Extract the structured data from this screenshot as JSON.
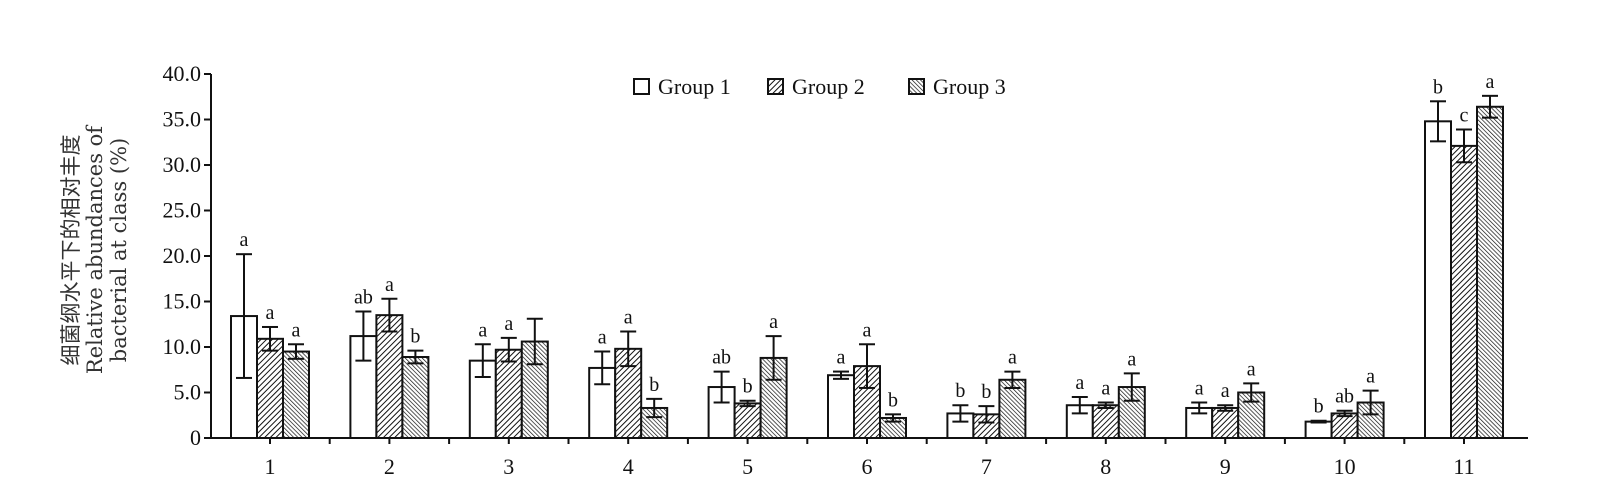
{
  "chart_data": {
    "type": "bar",
    "ylabel_lines": [
      "细菌纲水平下的相对丰度",
      "Relative abundances of",
      "bacterial at class (%)"
    ],
    "ylim": [
      0,
      40
    ],
    "yticks": [
      "0",
      "5.0",
      "10.0",
      "15.0",
      "20.0",
      "25.0",
      "30.0",
      "35.0",
      "40.0"
    ],
    "categories": [
      "1",
      "2",
      "3",
      "4",
      "5",
      "6",
      "7",
      "8",
      "9",
      "10",
      "11"
    ],
    "legend_position": "top-center",
    "series": [
      {
        "name": "Group 1",
        "values": [
          13.4,
          11.2,
          8.5,
          7.7,
          5.6,
          6.9,
          2.7,
          3.6,
          3.3,
          1.8,
          34.8
        ],
        "errors": [
          6.8,
          2.7,
          1.8,
          1.8,
          1.7,
          0.4,
          0.9,
          0.9,
          0.6,
          0.1,
          2.2
        ],
        "letters": [
          "a",
          "ab",
          "a",
          "a",
          "ab",
          "a",
          "b",
          "a",
          "a",
          "b",
          "b"
        ]
      },
      {
        "name": "Group 2",
        "values": [
          10.9,
          13.5,
          9.7,
          9.8,
          3.8,
          7.9,
          2.6,
          3.6,
          3.3,
          2.7,
          32.1
        ],
        "errors": [
          1.3,
          1.8,
          1.3,
          1.9,
          0.3,
          2.4,
          0.9,
          0.3,
          0.3,
          0.3,
          1.8
        ],
        "letters": [
          "a",
          "a",
          "a",
          "a",
          "b",
          "a",
          "b",
          "a",
          "a",
          "ab",
          "c"
        ]
      },
      {
        "name": "Group 3",
        "values": [
          9.5,
          8.9,
          10.6,
          3.3,
          8.8,
          2.2,
          6.4,
          5.6,
          5.0,
          3.9,
          36.4
        ],
        "errors": [
          0.8,
          0.7,
          2.5,
          1.0,
          2.4,
          0.4,
          0.9,
          1.5,
          1.0,
          1.3,
          1.2
        ],
        "letters": [
          "a",
          "b",
          "",
          "b",
          "a",
          "b",
          "a",
          "a",
          "a",
          "a",
          "a"
        ]
      }
    ]
  }
}
